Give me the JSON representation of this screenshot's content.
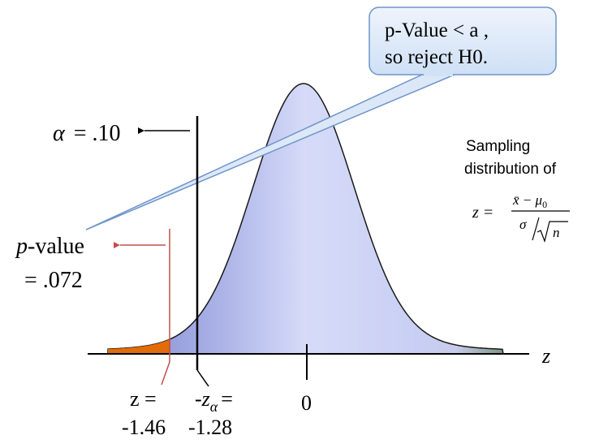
{
  "callout": {
    "line1": "p-Value < a ,",
    "line2": "so reject H0."
  },
  "alpha": {
    "symbol": "α",
    "label": "= .10"
  },
  "p_value": {
    "label_italic": "p",
    "label_rest": "-value",
    "value": "= .072"
  },
  "sampling": {
    "line1": "Sampling",
    "line2": "distribution of",
    "formula_lhs": "z =",
    "numerator": "x̄ − μ",
    "numerator_sub": "0",
    "denominator_sigma": "σ",
    "denominator_n": "n"
  },
  "axis": {
    "label": "z",
    "zero_label": "0"
  },
  "z_stat": {
    "label": "z =",
    "value": "-1.46"
  },
  "z_alpha": {
    "prefix": "-z",
    "sub": "α",
    "equals": "=",
    "value": "-1.28"
  },
  "colors": {
    "curve_fill_light": "#e8ecfb",
    "curve_fill_mid": "#c5cbf3",
    "curve_fill_dark": "#9aa3dc",
    "tail_fill": "#e36c0a",
    "right_tail": "#8e9e94",
    "callout_fill": "#dce8f8",
    "callout_border": "#7aa0d0",
    "pvalue_arrow": "#c0504d"
  }
}
